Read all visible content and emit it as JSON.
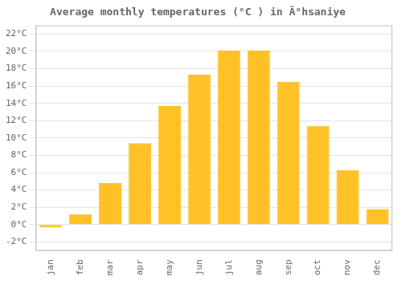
{
  "chart_data": {
    "type": "bar",
    "title": "Average monthly temperatures (°C ) in Ä°hsaniye",
    "categories": [
      "jan",
      "feb",
      "mar",
      "apr",
      "may",
      "jun",
      "jul",
      "aug",
      "sep",
      "oct",
      "nov",
      "dec"
    ],
    "values": [
      -0.3,
      1.2,
      4.8,
      9.4,
      13.7,
      17.3,
      20.1,
      20.1,
      16.5,
      11.4,
      6.3,
      1.8
    ],
    "color": "#FFC125",
    "ylim": [
      -3,
      23
    ],
    "yticks": [
      {
        "value": -2,
        "label": "-2°C"
      },
      {
        "value": 0,
        "label": "0°C"
      },
      {
        "value": 2,
        "label": "2°C"
      },
      {
        "value": 4,
        "label": "4°C"
      },
      {
        "value": 6,
        "label": "6°C"
      },
      {
        "value": 8,
        "label": "8°C"
      },
      {
        "value": 10,
        "label": "10°C"
      },
      {
        "value": 12,
        "label": "12°C"
      },
      {
        "value": 14,
        "label": "14°C"
      },
      {
        "value": 16,
        "label": "16°C"
      },
      {
        "value": 18,
        "label": "18°C"
      },
      {
        "value": 20,
        "label": "20°C"
      },
      {
        "value": 22,
        "label": "22°C"
      }
    ],
    "grid": true
  }
}
